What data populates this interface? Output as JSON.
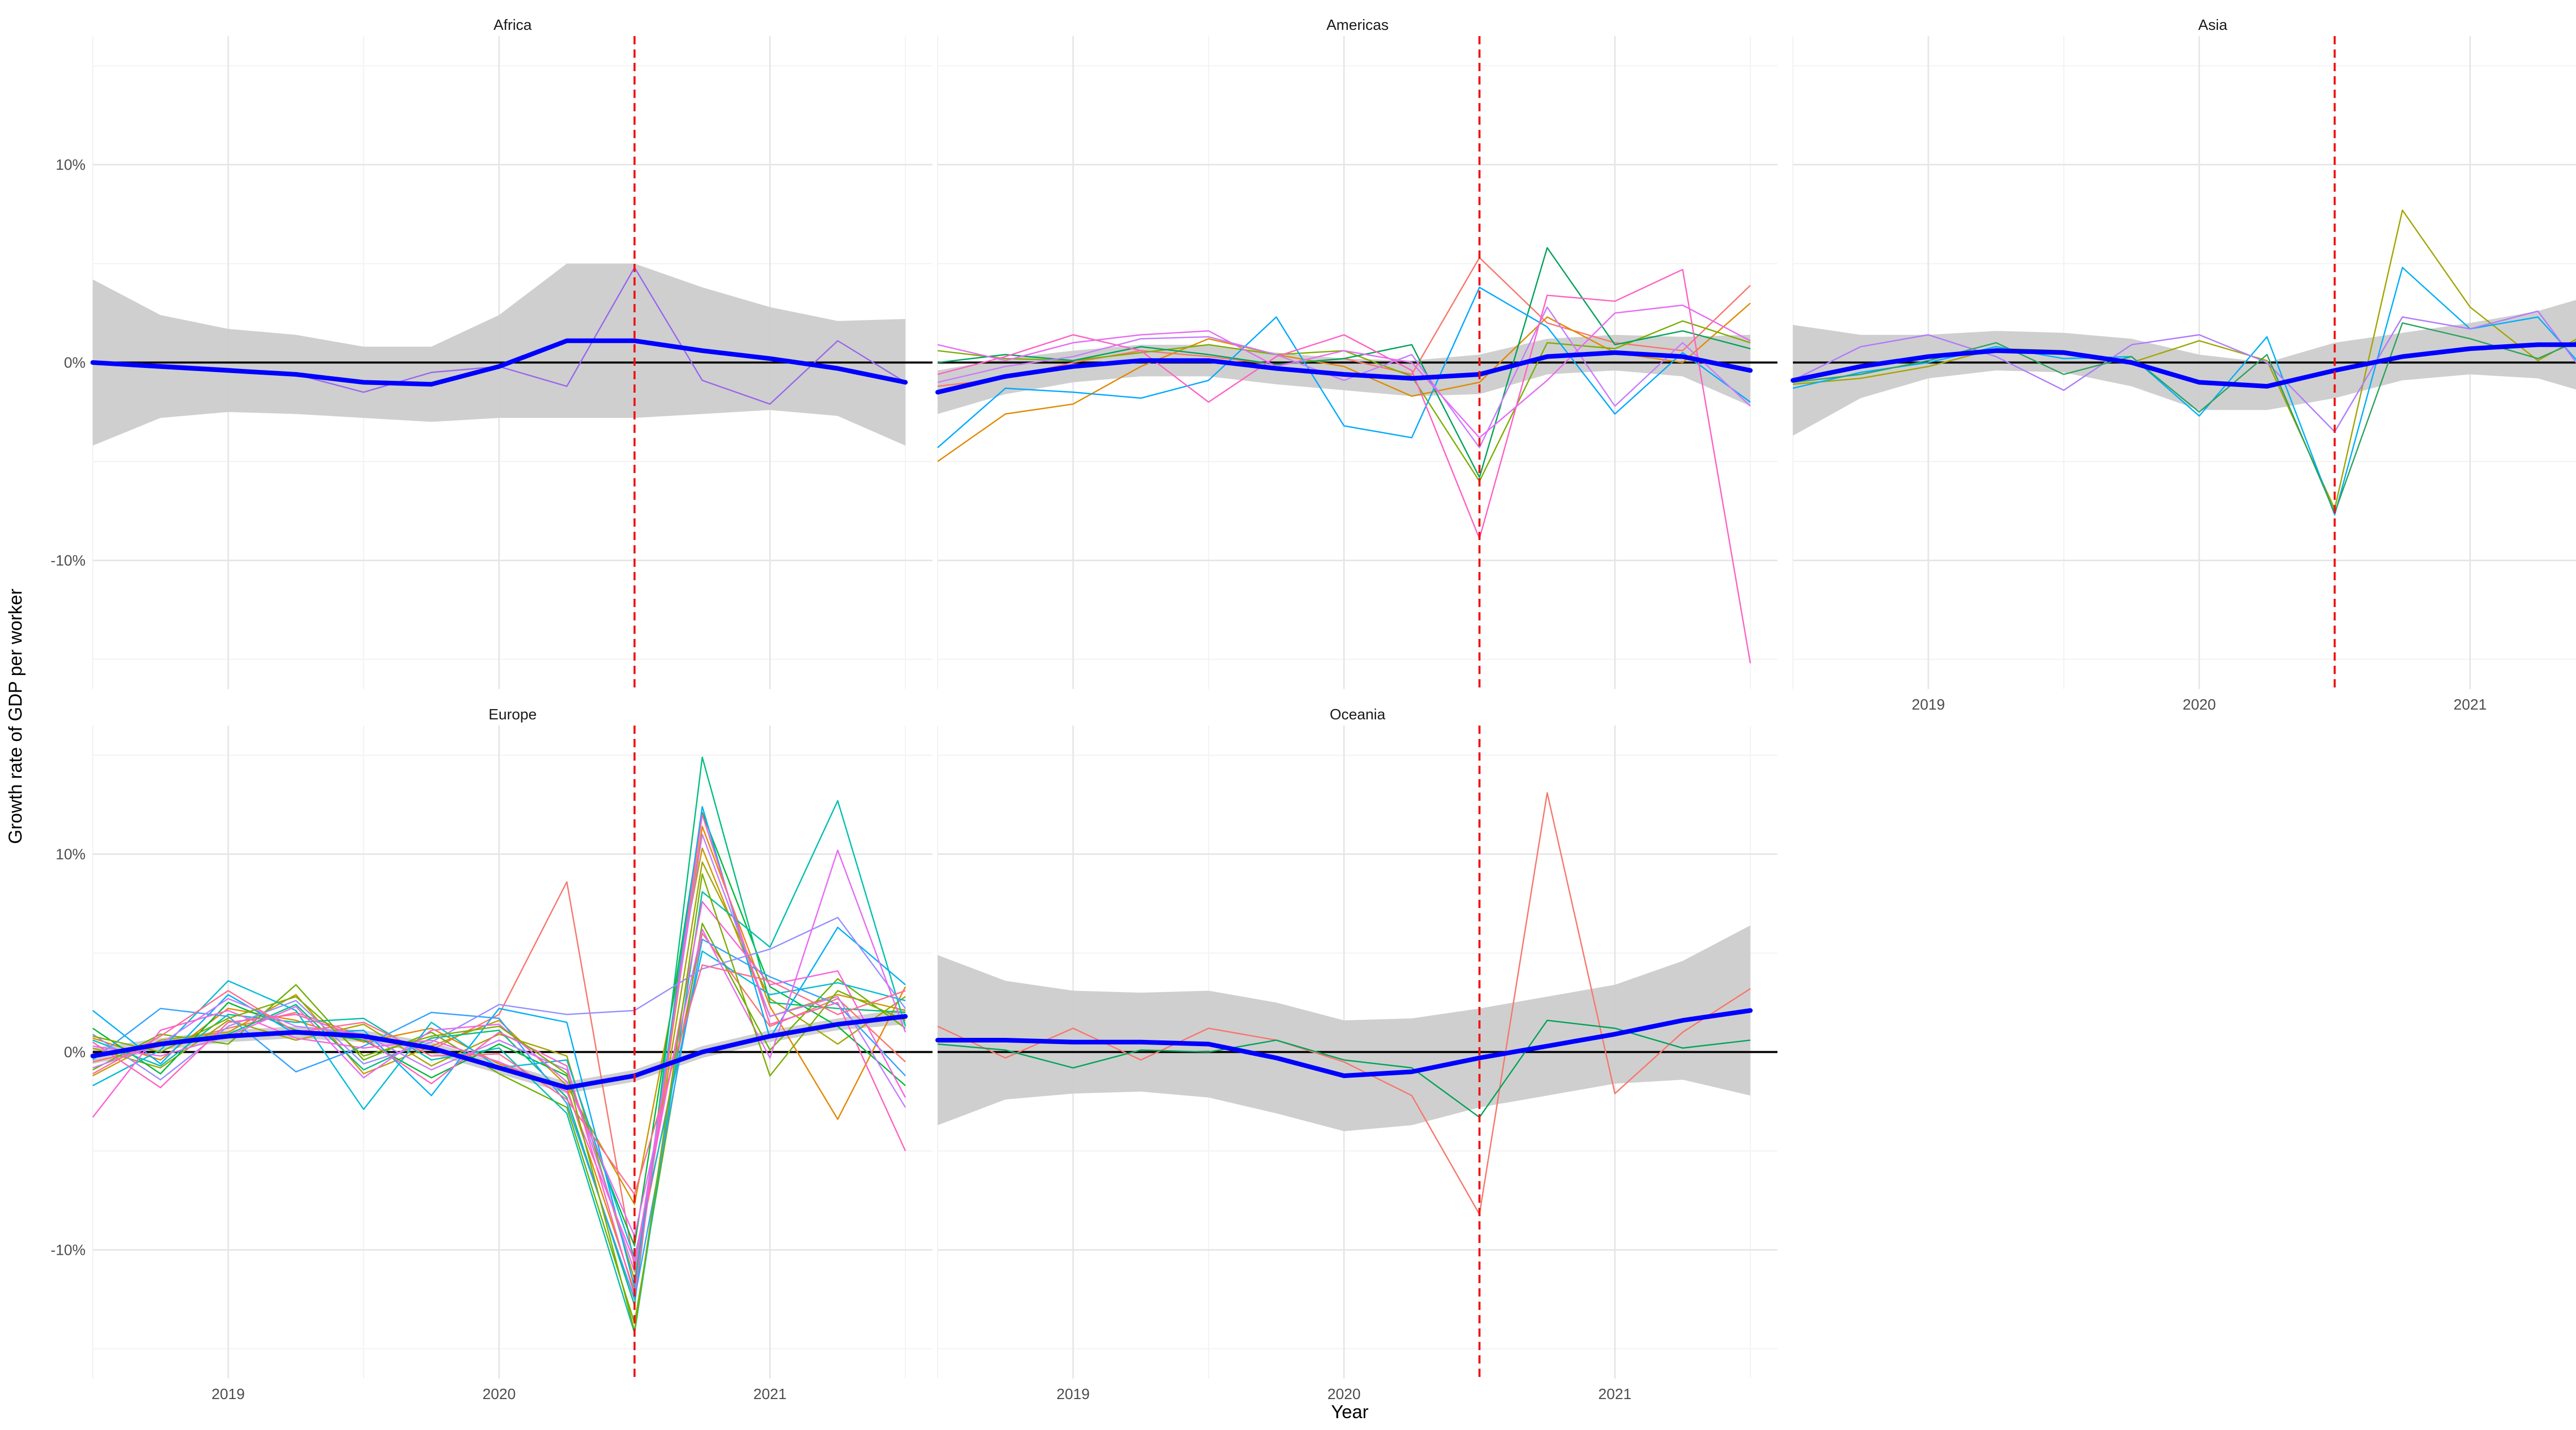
{
  "chart_data": {
    "type": "line",
    "xlabel": "Year",
    "ylabel": "Growth rate of GDP per worker",
    "xlim": [
      2018.5,
      2021.6
    ],
    "ylim": [
      -16.5,
      16.5
    ],
    "x_ticks": [
      2019,
      2020,
      2021
    ],
    "x_tick_labels": [
      "2019",
      "2020",
      "2021"
    ],
    "y_ticks": [
      -10,
      0,
      10
    ],
    "y_tick_labels": [
      "-10%",
      "0%",
      "10%"
    ],
    "vline_x": 2020.5,
    "hline_y": 0,
    "colors": {
      "smooth": "#0000ff",
      "ribbon": "#cccccc",
      "vline": "#ee1111",
      "zero_line": "#000000",
      "grid_major": "#e6e6e6",
      "grid_minor": "#f2f2f2"
    },
    "quarters": [
      2018.5,
      2018.75,
      2019.0,
      2019.25,
      2019.5,
      2019.75,
      2020.0,
      2020.25,
      2020.5,
      2020.75,
      2021.0,
      2021.25,
      2021.5
    ],
    "facets": [
      {
        "name": "Africa",
        "series": [
          {
            "color": "#9966ee",
            "values": [
              0.0,
              -0.1,
              -0.3,
              -0.6,
              -1.5,
              -0.5,
              -0.2,
              -1.2,
              4.8,
              -0.9,
              -2.1,
              1.1,
              -1.0
            ]
          }
        ],
        "smooth": [
          0.0,
          -0.2,
          -0.4,
          -0.6,
          -1.0,
          -1.1,
          -0.2,
          1.1,
          1.1,
          0.6,
          0.2,
          -0.3,
          -1.0
        ],
        "band": [
          4.2,
          2.6,
          2.1,
          2.0,
          1.8,
          1.9,
          2.6,
          3.9,
          3.9,
          3.2,
          2.6,
          2.4,
          3.2
        ]
      },
      {
        "name": "Americas",
        "series": [
          {
            "color": "#f8766d",
            "values": [
              -1.2,
              -0.8,
              0.0,
              0.6,
              0.3,
              -0.1,
              0.2,
              -0.6,
              5.3,
              2.0,
              1.0,
              0.6,
              3.9
            ]
          },
          {
            "color": "#e08a00",
            "values": [
              -5.0,
              -2.6,
              -2.1,
              -0.2,
              1.2,
              0.4,
              -0.2,
              -1.7,
              -1.0,
              2.3,
              0.5,
              0.0,
              3.0
            ]
          },
          {
            "color": "#7cae00",
            "values": [
              0.6,
              0.2,
              0.1,
              0.5,
              0.9,
              0.4,
              0.6,
              -0.7,
              -6.0,
              1.0,
              0.7,
              2.1,
              1.0
            ]
          },
          {
            "color": "#00a35a",
            "values": [
              0.0,
              0.4,
              0.1,
              0.8,
              0.4,
              -0.1,
              0.2,
              0.9,
              -5.8,
              5.8,
              0.9,
              1.6,
              0.7
            ]
          },
          {
            "color": "#00a9ff",
            "values": [
              -4.3,
              -1.3,
              -1.5,
              -1.8,
              -0.9,
              2.3,
              -3.2,
              -3.8,
              3.8,
              1.8,
              -2.6,
              0.5,
              -2.0
            ]
          },
          {
            "color": "#c77cff",
            "values": [
              -1.0,
              -0.2,
              0.3,
              1.2,
              1.3,
              0.4,
              -0.9,
              0.4,
              -4.3,
              2.8,
              -2.2,
              1.0,
              -2.2
            ]
          },
          {
            "color": "#ff61c3",
            "values": [
              -0.6,
              0.3,
              1.4,
              0.6,
              -2.0,
              0.3,
              1.4,
              -0.4,
              -8.9,
              3.4,
              3.1,
              4.7,
              -15.2
            ]
          },
          {
            "color": "#e76bf3",
            "values": [
              0.9,
              0.1,
              1.0,
              1.4,
              1.6,
              -0.2,
              0.6,
              0.0,
              -3.8,
              -0.9,
              2.5,
              2.9,
              1.1
            ]
          }
        ],
        "smooth": [
          -1.5,
          -0.7,
          -0.2,
          0.1,
          0.1,
          -0.3,
          -0.6,
          -0.8,
          -0.6,
          0.3,
          0.5,
          0.3,
          -0.4
        ],
        "band": [
          1.1,
          0.9,
          0.8,
          0.8,
          0.8,
          0.8,
          0.8,
          0.9,
          1.0,
          0.9,
          0.9,
          1.0,
          1.8
        ]
      },
      {
        "name": "Asia",
        "series": [
          {
            "color": "#a3a500",
            "values": [
              -1.1,
              -0.8,
              -0.2,
              0.7,
              0.6,
              0.0,
              1.1,
              0.1,
              -7.4,
              7.7,
              2.8,
              0.1,
              2.0
            ]
          },
          {
            "color": "#00b0f6",
            "values": [
              -1.3,
              -0.5,
              0.0,
              0.8,
              0.2,
              0.3,
              -2.7,
              1.3,
              -7.7,
              4.8,
              1.7,
              2.3,
              -1.5
            ]
          },
          {
            "color": "#b07aff",
            "values": [
              -0.9,
              0.8,
              1.4,
              0.3,
              -1.4,
              0.9,
              1.4,
              0.0,
              -3.5,
              2.3,
              1.7,
              2.6,
              -2.0
            ]
          },
          {
            "color": "#2ca25f",
            "values": [
              -1.0,
              -0.6,
              0.1,
              1.0,
              -0.6,
              0.3,
              -2.5,
              0.4,
              -7.6,
              2.0,
              1.2,
              0.2,
              1.7
            ]
          }
        ],
        "smooth": [
          -0.9,
          -0.2,
          0.3,
          0.6,
          0.5,
          0.0,
          -1.0,
          -1.2,
          -0.4,
          0.3,
          0.7,
          0.9,
          0.9
        ],
        "band": [
          2.8,
          1.6,
          1.1,
          1.0,
          1.0,
          1.2,
          1.4,
          1.2,
          1.4,
          1.2,
          1.3,
          1.7,
          2.7
        ]
      },
      {
        "name": "Europe",
        "series": [
          {
            "color": "#f8766d",
            "values": [
              -0.5,
              0.3,
              1.2,
              2.0,
              0.8,
              0.1,
              1.9,
              8.6,
              -10.9,
              6.0,
              1.3,
              2.7,
              -0.5
            ]
          },
          {
            "color": "#e58700",
            "values": [
              0.7,
              -0.4,
              2.2,
              1.6,
              0.5,
              1.2,
              -0.6,
              -1.8,
              -12.1,
              11.4,
              2.3,
              -3.4,
              3.3
            ]
          },
          {
            "color": "#c99800",
            "values": [
              -1.2,
              0.6,
              1.0,
              2.9,
              -1.1,
              0.3,
              1.6,
              -1.7,
              -7.7,
              10.3,
              1.8,
              2.9,
              2.1
            ]
          },
          {
            "color": "#a3a500",
            "values": [
              0.2,
              -0.8,
              1.6,
              0.6,
              1.4,
              -0.7,
              0.9,
              -0.2,
              -11.5,
              9.6,
              2.7,
              0.4,
              2.8
            ]
          },
          {
            "color": "#6bb100",
            "values": [
              -0.9,
              0.9,
              0.4,
              3.4,
              -0.4,
              1.0,
              -1.1,
              -2.8,
              -13.7,
              6.5,
              0.1,
              3.7,
              1.2
            ]
          },
          {
            "color": "#00ba38",
            "values": [
              1.2,
              -1.1,
              2.5,
              1.1,
              0.6,
              -1.3,
              0.4,
              -1.2,
              -9.8,
              12.1,
              3.3,
              1.3,
              -1.7
            ]
          },
          {
            "color": "#00bf7d",
            "values": [
              -0.3,
              0.5,
              0.9,
              2.4,
              -0.9,
              0.7,
              1.1,
              -2.3,
              -12.8,
              14.9,
              2.5,
              2.2,
              2.0
            ]
          },
          {
            "color": "#00c0af",
            "values": [
              0.6,
              -0.7,
              1.9,
              1.5,
              1.7,
              -0.4,
              0.2,
              -3.1,
              -14.2,
              8.1,
              5.3,
              12.7,
              1.3
            ]
          },
          {
            "color": "#00bcd8",
            "values": [
              -1.7,
              0.1,
              3.6,
              2.1,
              -2.9,
              1.5,
              -0.8,
              -0.4,
              -10.4,
              5.1,
              2.9,
              3.5,
              2.6
            ]
          },
          {
            "color": "#00b0f6",
            "values": [
              2.1,
              -0.6,
              2.9,
              0.9,
              1.1,
              -2.2,
              2.2,
              1.5,
              -11.9,
              12.4,
              0.7,
              6.3,
              3.4
            ]
          },
          {
            "color": "#35a2ff",
            "values": [
              -0.4,
              2.2,
              1.8,
              -1.0,
              0.3,
              2.0,
              1.7,
              -2.6,
              -12.5,
              5.7,
              3.8,
              2.4,
              -1.2
            ]
          },
          {
            "color": "#9590ff",
            "values": [
              0.9,
              -1.4,
              1.3,
              2.6,
              -0.6,
              0.5,
              2.4,
              1.9,
              2.1,
              4.2,
              5.2,
              6.8,
              2.2
            ]
          },
          {
            "color": "#c77cff",
            "values": [
              -0.8,
              0.4,
              2.7,
              1.3,
              0.9,
              -0.9,
              0.6,
              -0.9,
              -11.1,
              11.0,
              1.8,
              2.8,
              -2.8
            ]
          },
          {
            "color": "#e76bf3",
            "values": [
              0.3,
              -0.2,
              0.8,
              2.3,
              -1.3,
              1.1,
              1.4,
              -1.5,
              -9.3,
              6.2,
              -0.3,
              10.2,
              1.0
            ]
          },
          {
            "color": "#fa62db",
            "values": [
              -3.3,
              1.1,
              2.1,
              0.7,
              0.2,
              0.6,
              -0.5,
              -2.0,
              -10.6,
              7.6,
              3.4,
              4.1,
              -2.3
            ]
          },
          {
            "color": "#ff62bc",
            "values": [
              0.5,
              -1.8,
              1.5,
              1.9,
              0.7,
              -1.6,
              1.0,
              -0.7,
              -12.3,
              12.0,
              1.4,
              2.5,
              -5.0
            ]
          },
          {
            "color": "#ff6c91",
            "values": [
              -1.1,
              0.8,
              3.1,
              1.0,
              1.5,
              -0.2,
              -0.1,
              -2.4,
              -7.2,
              4.4,
              3.6,
              1.9,
              3.1
            ]
          },
          {
            "color": "#7cae00",
            "values": [
              0.8,
              0.0,
              1.7,
              2.8,
              -0.2,
              0.8,
              1.3,
              -1.1,
              -14.1,
              9.0,
              -1.2,
              3.1,
              1.6
            ]
          }
        ],
        "smooth": [
          -0.2,
          0.4,
          0.8,
          1.0,
          0.8,
          0.2,
          -0.8,
          -1.8,
          -1.2,
          0.0,
          0.8,
          1.4,
          1.8
        ],
        "band": [
          0.4,
          0.3,
          0.3,
          0.3,
          0.3,
          0.3,
          0.3,
          0.3,
          0.3,
          0.3,
          0.3,
          0.3,
          0.4
        ]
      },
      {
        "name": "Oceania",
        "series": [
          {
            "color": "#f8766d",
            "values": [
              1.3,
              -0.3,
              1.2,
              -0.4,
              1.2,
              0.6,
              -0.5,
              -2.2,
              -8.2,
              13.1,
              -2.1,
              1.0,
              3.2
            ]
          },
          {
            "color": "#00a35a",
            "values": [
              0.4,
              0.1,
              -0.8,
              0.1,
              0.0,
              0.6,
              -0.4,
              -0.8,
              -3.3,
              1.6,
              1.2,
              0.2,
              0.6
            ]
          }
        ],
        "smooth": [
          0.6,
          0.6,
          0.5,
          0.5,
          0.4,
          -0.3,
          -1.2,
          -1.0,
          -0.3,
          0.3,
          0.9,
          1.6,
          2.1
        ],
        "band": [
          4.3,
          3.0,
          2.6,
          2.5,
          2.7,
          2.8,
          2.8,
          2.7,
          2.5,
          2.5,
          2.5,
          3.0,
          4.3
        ]
      }
    ]
  }
}
